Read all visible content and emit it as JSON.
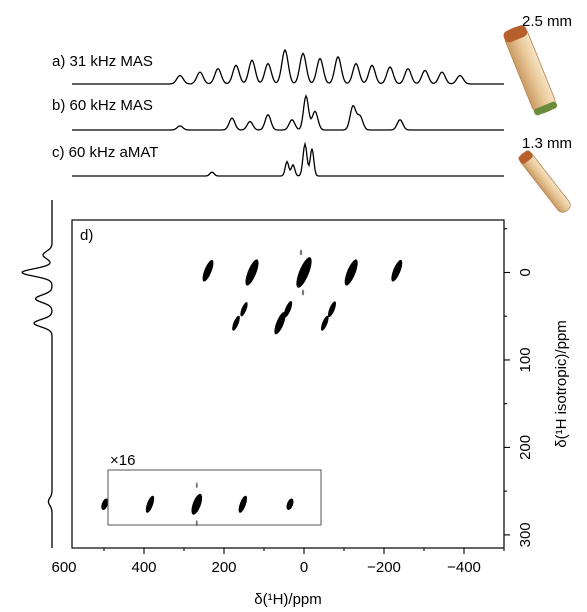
{
  "chart_data": {
    "type": "heatmap",
    "panel_label": "d)",
    "inset_label": "×16",
    "xlabel": "δ(¹H)/ppm",
    "ylabel": "δ(¹H isotropic)/ppm",
    "xlim": [
      580,
      -500
    ],
    "ylim": [
      -60,
      315
    ],
    "xticks": [
      600,
      400,
      200,
      0,
      -200,
      -400
    ],
    "xtick_labels": [
      "600",
      "400",
      "200",
      "0",
      "−200",
      "−400"
    ],
    "yticks": [
      0,
      100,
      200,
      300
    ],
    "ytick_labels": [
      "0",
      "100",
      "200",
      "300"
    ],
    "spectra_1d": [
      {
        "label": "a) 31 kHz MAS",
        "condition": "31 kHz MAS"
      },
      {
        "label": "b) 60 kHz MAS",
        "condition": "60 kHz MAS"
      },
      {
        "label": "c) 60 kHz aMAT",
        "condition": "60 kHz aMAT"
      }
    ],
    "rotors": [
      {
        "label": "2.5 mm"
      },
      {
        "label": "1.3 mm"
      }
    ],
    "peaks_main": [
      {
        "x": 240,
        "y": -2,
        "iy": 0.7
      },
      {
        "x": 130,
        "y": 0,
        "iy": 1
      },
      {
        "x": 0,
        "y": 0,
        "iy": 1.3
      },
      {
        "x": -118,
        "y": 0,
        "iy": 1
      },
      {
        "x": -232,
        "y": -2,
        "iy": 0.7
      },
      {
        "x": 150,
        "y": 42,
        "iy": 0.2
      },
      {
        "x": 40,
        "y": 42,
        "iy": 0.35
      },
      {
        "x": -70,
        "y": 42,
        "iy": 0.3
      },
      {
        "x": 170,
        "y": 58,
        "iy": 0.25
      },
      {
        "x": 60,
        "y": 58,
        "iy": 0.75
      },
      {
        "x": -52,
        "y": 58,
        "iy": 0.25
      }
    ],
    "peaks_inset": [
      {
        "x": 498,
        "y": 265
      },
      {
        "x": 385,
        "y": 265
      },
      {
        "x": 268,
        "y": 265
      },
      {
        "x": 153,
        "y": 265
      },
      {
        "x": 35,
        "y": 265
      }
    ],
    "projection_f1": [
      {
        "y": -20,
        "h": 0.3
      },
      {
        "y": 0,
        "h": 1
      },
      {
        "y": 30,
        "h": 0.55
      },
      {
        "y": 58,
        "h": 0.6
      },
      {
        "y": 262,
        "h": 0.12
      }
    ]
  }
}
